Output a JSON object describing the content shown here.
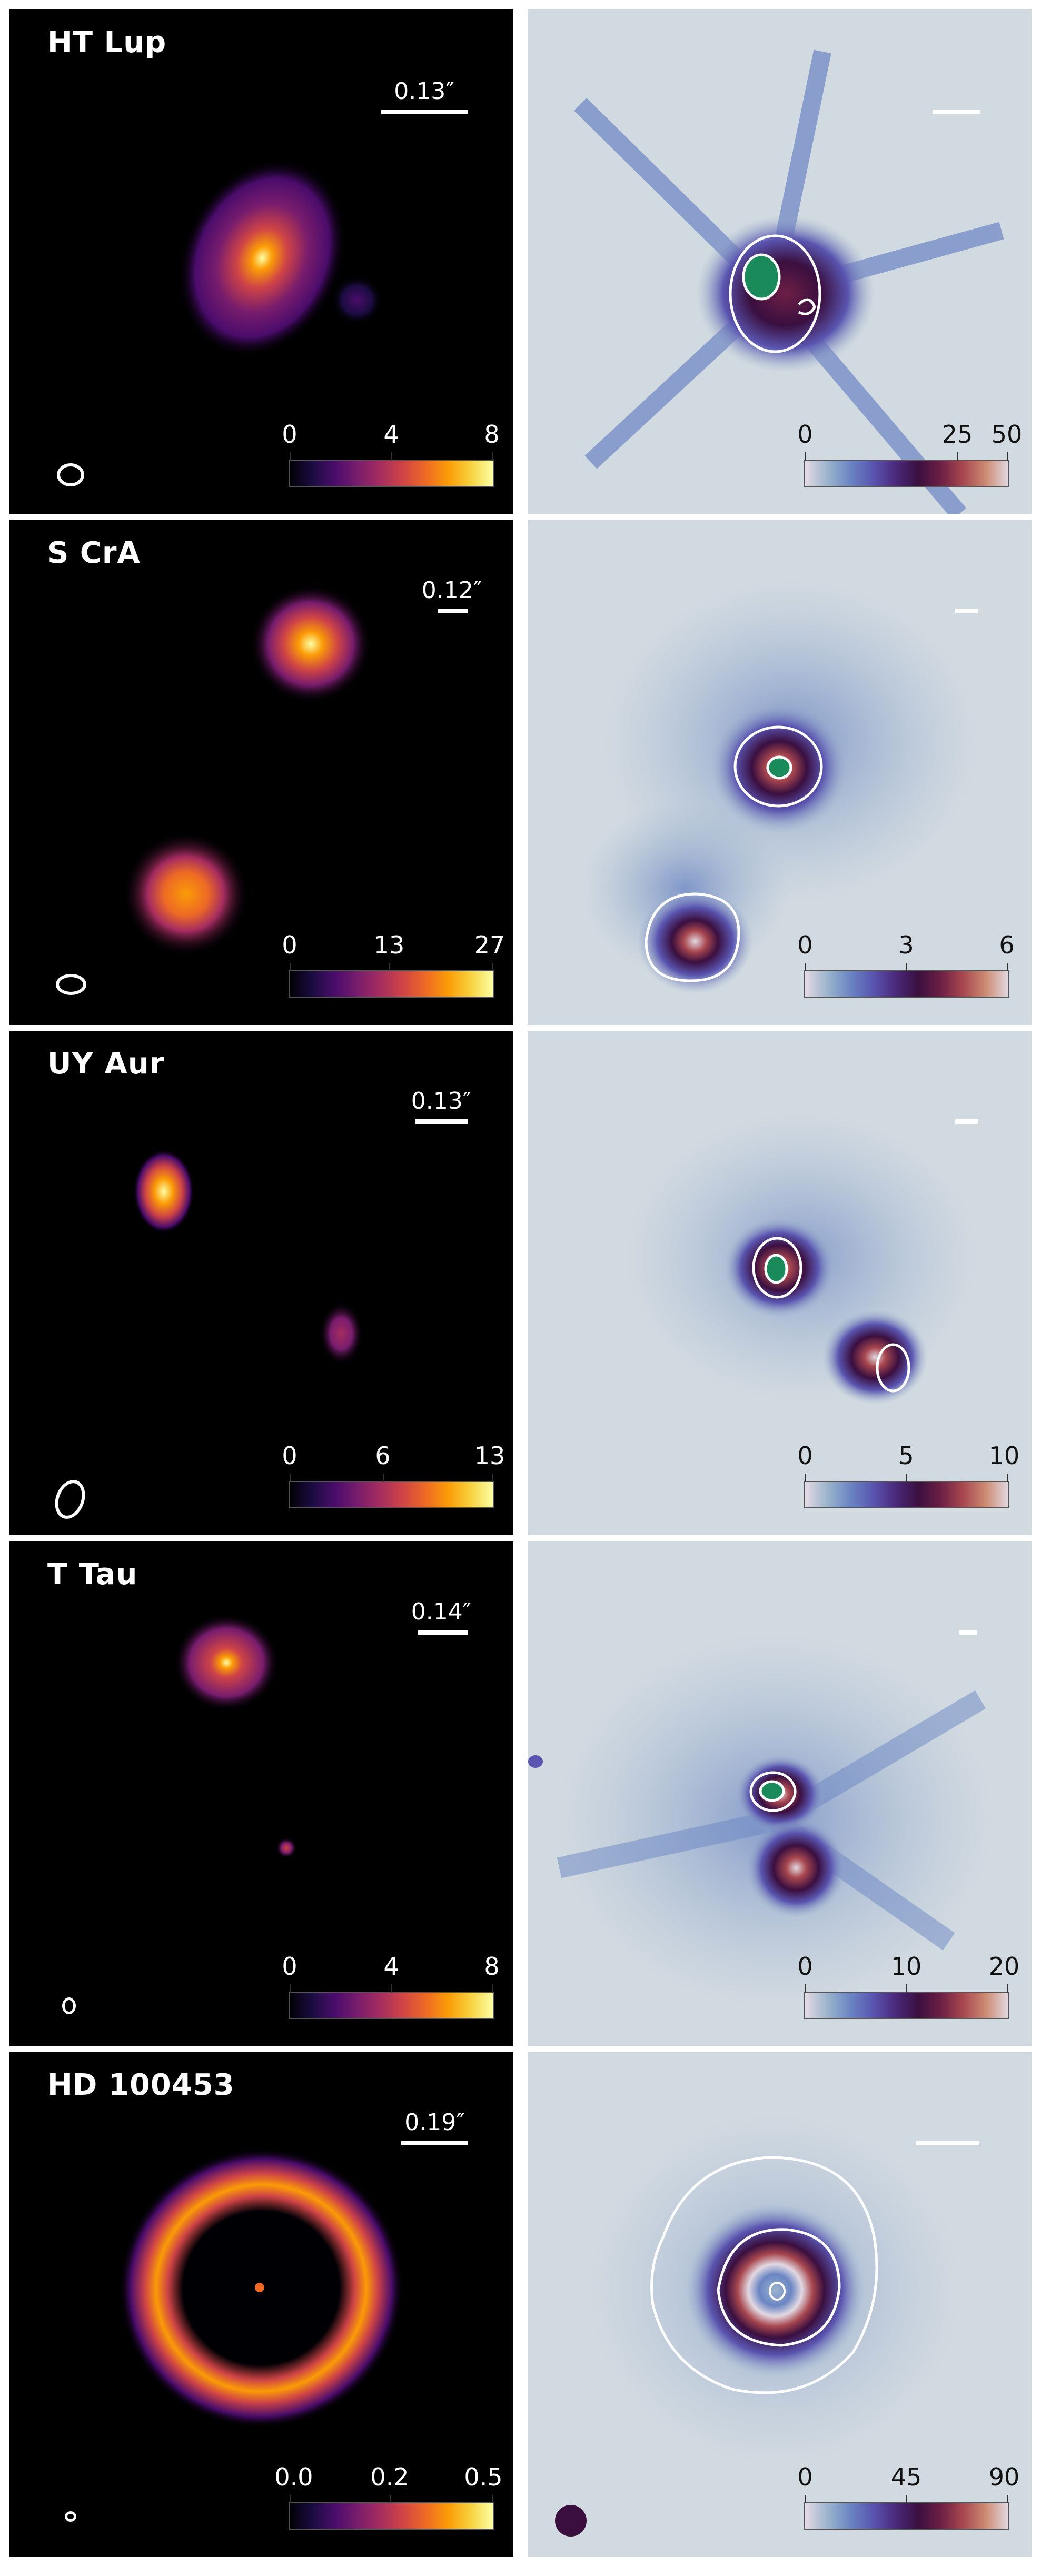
{
  "figure": {
    "rows": [
      {
        "name": "HT Lup",
        "scale_label": "0.13″",
        "left_colorbar_ticks": [
          "0",
          "4",
          "8"
        ],
        "right_colorbar_ticks": [
          "0",
          "25",
          "50"
        ]
      },
      {
        "name": "S CrA",
        "scale_label": "0.12″",
        "left_colorbar_ticks": [
          "0",
          "13",
          "27"
        ],
        "right_colorbar_ticks": [
          "0",
          "3",
          "6"
        ]
      },
      {
        "name": "UY Aur",
        "scale_label": "0.13″",
        "left_colorbar_ticks": [
          "0",
          "6",
          "13"
        ],
        "right_colorbar_ticks": [
          "0",
          "5",
          "10"
        ]
      },
      {
        "name": "T Tau",
        "scale_label": "0.14″",
        "left_colorbar_ticks": [
          "0",
          "4",
          "8"
        ],
        "right_colorbar_ticks": [
          "0",
          "10",
          "20"
        ]
      },
      {
        "name": "HD 100453",
        "scale_label": "0.19″",
        "left_colorbar_ticks": [
          "0.0",
          "0.2",
          "0.5"
        ],
        "right_colorbar_ticks": [
          "0",
          "45",
          "90"
        ]
      }
    ]
  },
  "colors": {
    "left_background": "#000000",
    "right_background": "#d2dae1",
    "left_colormap": "inferno",
    "right_colormap": "twilight",
    "contour": "#ffffff",
    "contour_fill": "#1a8a5a"
  }
}
